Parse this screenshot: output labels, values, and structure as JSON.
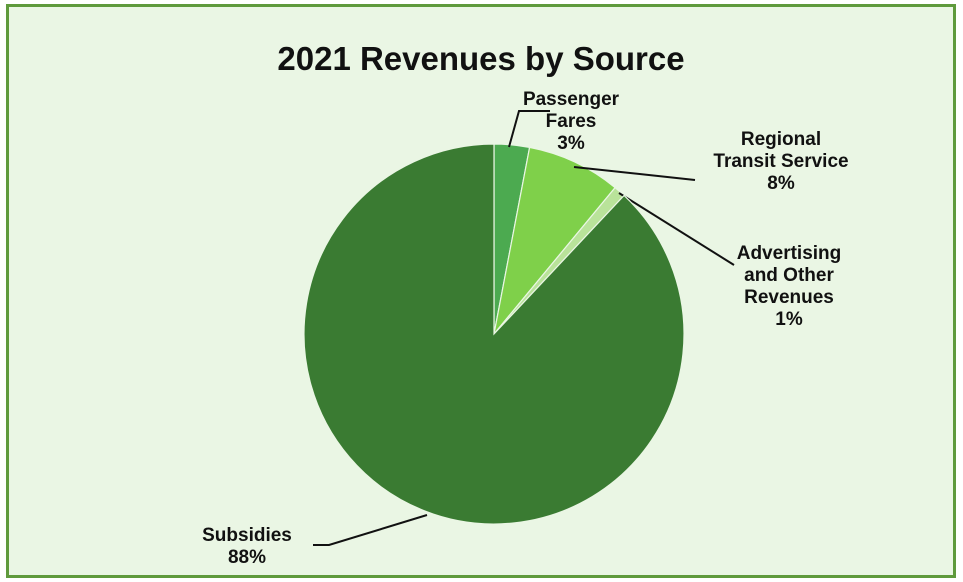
{
  "chart_data": {
    "type": "pie",
    "title": "2021 Revenues by Source",
    "slices": [
      {
        "name": "Passenger Fares",
        "label_lines": [
          "Passenger",
          "Fares"
        ],
        "value": 3,
        "value_label": "3%",
        "color": "#4caa50"
      },
      {
        "name": "Regional Transit Service",
        "label_lines": [
          "Regional",
          "Transit Service"
        ],
        "value": 8,
        "value_label": "8%",
        "color": "#7fd04a"
      },
      {
        "name": "Advertising and Other Revenues",
        "label_lines": [
          "Advertising",
          "and Other",
          "Revenues"
        ],
        "value": 1,
        "value_label": "1%",
        "color": "#b9e39a"
      },
      {
        "name": "Subsidies",
        "label_lines": [
          "Subsidies"
        ],
        "value": 88,
        "value_label": "88%",
        "color": "#3a7b32"
      }
    ],
    "start_angle_deg": 0,
    "direction": "clockwise",
    "legend": "none"
  }
}
